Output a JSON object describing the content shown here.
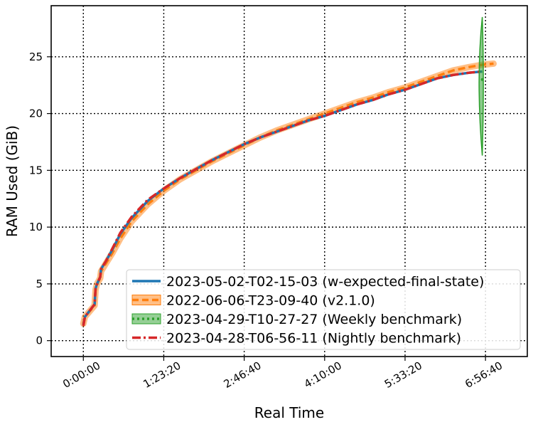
{
  "chart_data": {
    "type": "line",
    "title": "",
    "xlabel": "Real Time",
    "ylabel": "RAM Used (GiB)",
    "xlim_seconds": [
      -2000,
      23000
    ],
    "ylim": [
      -1.4,
      29.5
    ],
    "grid": true,
    "x_ticks": [
      {
        "value": 0,
        "label": "0:00:00"
      },
      {
        "value": 5000,
        "label": "1:23:20"
      },
      {
        "value": 10000,
        "label": "2:46:40"
      },
      {
        "value": 15000,
        "label": "4:10:00"
      },
      {
        "value": 20000,
        "label": "5:33:20"
      },
      {
        "value": 25000,
        "label": "6:56:40"
      }
    ],
    "y_ticks": [
      {
        "value": 0,
        "label": "0"
      },
      {
        "value": 5,
        "label": "5"
      },
      {
        "value": 10,
        "label": "10"
      },
      {
        "value": 15,
        "label": "15"
      },
      {
        "value": 20,
        "label": "20"
      },
      {
        "value": 25,
        "label": "25"
      }
    ],
    "legend_position": "lower-right",
    "series": [
      {
        "name": "2023-05-02-T02-15-03 (w-expected-final-state)",
        "color": "#1f77b4",
        "style": "solid",
        "points": [
          [
            0,
            1.4
          ],
          [
            100,
            2.1
          ],
          [
            700,
            3.2
          ],
          [
            760,
            4.6
          ],
          [
            850,
            5.0
          ],
          [
            1050,
            5.6
          ],
          [
            1100,
            6.3
          ],
          [
            1400,
            7.0
          ],
          [
            1800,
            8.0
          ],
          [
            2300,
            9.4
          ],
          [
            3000,
            10.8
          ],
          [
            4000,
            12.3
          ],
          [
            5000,
            13.4
          ],
          [
            6000,
            14.3
          ],
          [
            7000,
            15.1
          ],
          [
            8000,
            15.9
          ],
          [
            9000,
            16.6
          ],
          [
            10000,
            17.3
          ],
          [
            11000,
            17.9
          ],
          [
            12000,
            18.4
          ],
          [
            13000,
            18.9
          ],
          [
            14000,
            19.4
          ],
          [
            15000,
            19.8
          ],
          [
            16000,
            20.3
          ],
          [
            17000,
            20.8
          ],
          [
            18000,
            21.2
          ],
          [
            19000,
            21.7
          ],
          [
            20000,
            22.1
          ],
          [
            21000,
            22.6
          ],
          [
            22000,
            23.1
          ],
          [
            23000,
            23.4
          ],
          [
            24000,
            23.6
          ],
          [
            24800,
            23.7
          ]
        ]
      },
      {
        "name": "2022-06-06-T23-09-40 (v2.1.0)",
        "color": "#ff7f0e",
        "style": "dashed-band",
        "points": [
          [
            0,
            1.5
          ],
          [
            100,
            2.1
          ],
          [
            700,
            3.1
          ],
          [
            760,
            4.5
          ],
          [
            850,
            5.0
          ],
          [
            1050,
            5.5
          ],
          [
            1100,
            6.1
          ],
          [
            1400,
            6.8
          ],
          [
            1800,
            7.7
          ],
          [
            2300,
            9.0
          ],
          [
            3000,
            10.5
          ],
          [
            4000,
            12.0
          ],
          [
            5000,
            13.2
          ],
          [
            6000,
            14.2
          ],
          [
            7000,
            15.0
          ],
          [
            8000,
            15.8
          ],
          [
            9000,
            16.5
          ],
          [
            10000,
            17.2
          ],
          [
            11000,
            17.9
          ],
          [
            12000,
            18.5
          ],
          [
            13000,
            19.0
          ],
          [
            14000,
            19.5
          ],
          [
            15000,
            20.0
          ],
          [
            16000,
            20.5
          ],
          [
            17000,
            21.0
          ],
          [
            18000,
            21.4
          ],
          [
            19000,
            21.9
          ],
          [
            20000,
            22.3
          ],
          [
            21000,
            22.8
          ],
          [
            22000,
            23.3
          ],
          [
            23000,
            23.8
          ],
          [
            24000,
            24.1
          ],
          [
            24800,
            24.3
          ],
          [
            25500,
            24.4
          ]
        ]
      },
      {
        "name": "2023-04-29-T10-27-27 (Weekly benchmark)",
        "color": "#2ca02c",
        "style": "dotted-band",
        "points": [
          [
            24800,
            23.0
          ]
        ],
        "band": {
          "x": 24800,
          "y_low": 16.3,
          "y_high": 28.5
        }
      },
      {
        "name": "2023-04-28-T06-56-11 (Nightly benchmark)",
        "color": "#d62728",
        "style": "dashdot",
        "points": [
          [
            0,
            1.3
          ],
          [
            100,
            2.1
          ],
          [
            700,
            3.2
          ],
          [
            760,
            4.6
          ],
          [
            850,
            5.0
          ],
          [
            1050,
            5.6
          ],
          [
            1100,
            6.3
          ],
          [
            1400,
            7.0
          ],
          [
            1800,
            8.1
          ],
          [
            2300,
            9.5
          ],
          [
            3000,
            10.9
          ],
          [
            4000,
            12.4
          ],
          [
            5000,
            13.4
          ],
          [
            6000,
            14.3
          ],
          [
            7000,
            15.1
          ],
          [
            8000,
            15.9
          ],
          [
            9000,
            16.6
          ],
          [
            10000,
            17.3
          ],
          [
            11000,
            17.9
          ],
          [
            12000,
            18.4
          ],
          [
            13000,
            18.9
          ],
          [
            14000,
            19.4
          ],
          [
            15000,
            19.8
          ],
          [
            16000,
            20.3
          ],
          [
            17000,
            20.8
          ],
          [
            18000,
            21.2
          ],
          [
            19000,
            21.7
          ],
          [
            20000,
            22.1
          ],
          [
            21000,
            22.6
          ],
          [
            22000,
            23.1
          ],
          [
            23000,
            23.4
          ],
          [
            24000,
            23.6
          ],
          [
            24800,
            23.7
          ]
        ]
      }
    ]
  }
}
